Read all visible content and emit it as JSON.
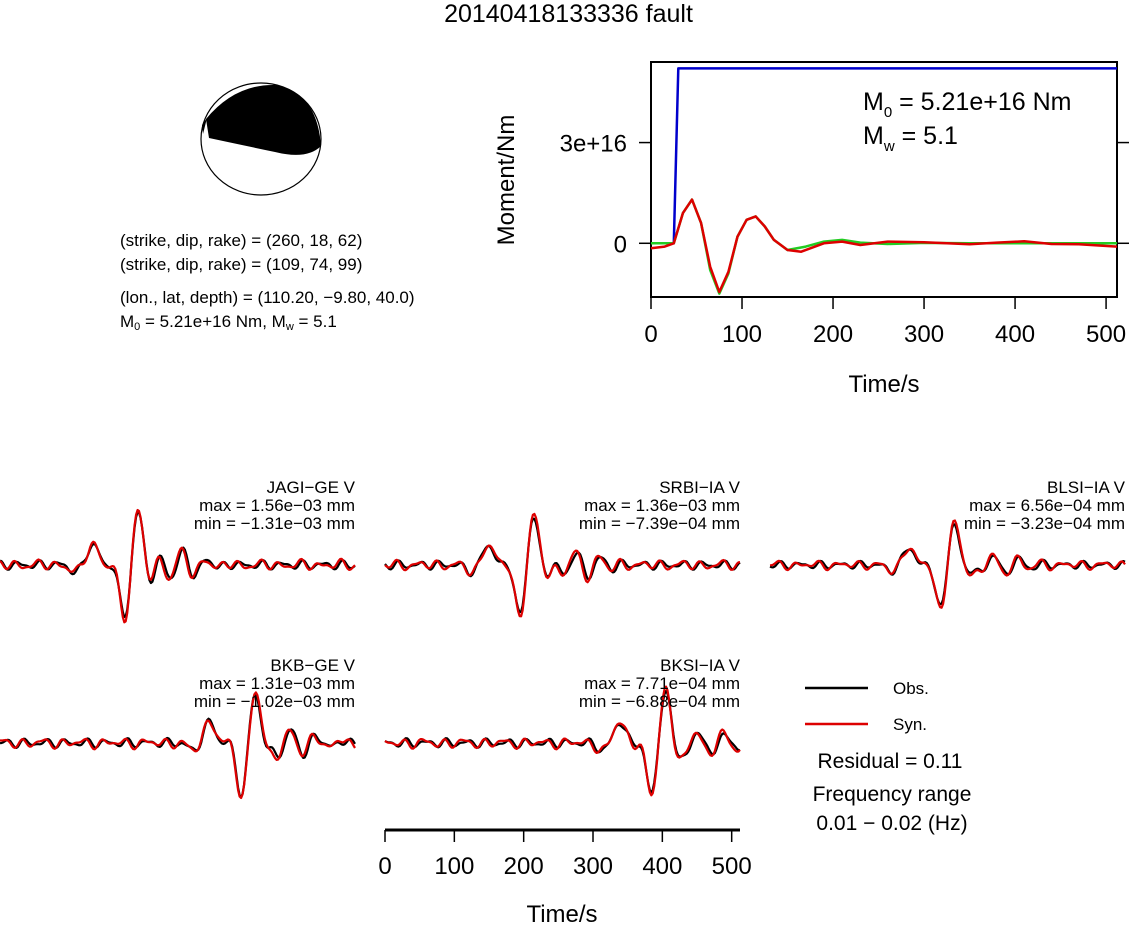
{
  "title": "20140418133336 fault",
  "info": {
    "line1": "(strike, dip, rake) = (260, 18, 62)",
    "line2": "(strike, dip, rake) = (109, 74, 99)",
    "line3": "(lon., lat, depth) = (110.20, −9.80, 40.0)",
    "m0_value": "5.21e+16 Nm",
    "mw_value": "5.1"
  },
  "moment_label_m0_value": "5.21e+16 Nm",
  "moment_label_mw_value": "5.1",
  "legend": {
    "obs": "Obs.",
    "syn": "Syn.",
    "residual": "Residual = 0.11",
    "freq_title": "Frequency range",
    "freq_value": "0.01 − 0.02 (Hz)"
  },
  "colors": {
    "moment": "#0000cc",
    "stf_red": "#dd0000",
    "stf_green": "#22cc22",
    "obs": "#000000",
    "syn": "#dd0000",
    "beachball": "#000000"
  },
  "chart_data": [
    {
      "type": "line",
      "ylabel": "Moment/Nm",
      "xlabel": "Time/s",
      "xlim": [
        0,
        512
      ],
      "ylim": [
        -1.6e+16,
        5.4e+16
      ],
      "xticks": [
        0,
        100,
        200,
        300,
        400,
        500
      ],
      "xtick_labels": [
        "0",
        "100",
        "200",
        "300",
        "400",
        "500"
      ],
      "yticks": [
        0,
        3e+16
      ],
      "ytick_labels": [
        "0",
        "3e+16"
      ],
      "series": [
        {
          "color": "#0000cc",
          "x": [
            0,
            25,
            30,
            512
          ],
          "y": [
            0,
            0,
            5.21e+16,
            5.21e+16
          ]
        },
        {
          "color": "#22cc22",
          "x": [
            0,
            15,
            25,
            35,
            45,
            55,
            65,
            75,
            85,
            95,
            105,
            115,
            125,
            135,
            150,
            170,
            190,
            210,
            230,
            260,
            300,
            350,
            400,
            450,
            512
          ],
          "y": [
            0,
            0,
            0,
            9000000000000000.0,
            1.3e+16,
            6000000000000000.0,
            -8000000000000000.0,
            -1.5e+16,
            -9000000000000000.0,
            2000000000000000.0,
            7000000000000000.0,
            8000000000000000.0,
            5000000000000000.0,
            1000000000000000.0,
            -2000000000000000.0,
            -1000000000000000.0,
            500000000000000.0,
            1000000000000000.0,
            200000000000000.0,
            -200000000000000.0,
            100000000000000.0,
            0,
            0,
            0,
            0
          ]
        },
        {
          "color": "#dd0000",
          "x": [
            0,
            15,
            25,
            35,
            45,
            55,
            65,
            75,
            85,
            95,
            105,
            115,
            125,
            135,
            150,
            165,
            190,
            210,
            230,
            260,
            300,
            350,
            380,
            410,
            440,
            470,
            512
          ],
          "y": [
            -1500000000000000.0,
            -1000000000000000.0,
            0,
            9000000000000000.0,
            1.3e+16,
            6000000000000000.0,
            -7000000000000000.0,
            -1.45e+16,
            -8500000000000000.0,
            2000000000000000.0,
            7000000000000000.0,
            8000000000000000.0,
            5000000000000000.0,
            1000000000000000.0,
            -2000000000000000.0,
            -2500000000000000.0,
            0,
            500000000000000.0,
            -500000000000000.0,
            500000000000000.0,
            300000000000000.0,
            -300000000000000.0,
            200000000000000.0,
            600000000000000.0,
            -200000000000000.0,
            -300000000000000.0,
            -1000000000000000.0
          ]
        }
      ]
    },
    {
      "type": "line",
      "note_ref": "waveforms",
      "xlabel": "Time/s",
      "xlim": [
        0,
        512
      ],
      "xticks": [
        0,
        100,
        200,
        300,
        400,
        500
      ],
      "xtick_labels": [
        "0",
        "100",
        "200",
        "300",
        "400",
        "500"
      ],
      "stations": [
        {
          "name": "JAGI−GE V",
          "max": "max = 1.56e−03 mm",
          "min": "min = −1.31e−03 mm"
        },
        {
          "name": "SRBI−IA V",
          "max": "max = 1.36e−03 mm",
          "min": "min = −7.39e−04 mm"
        },
        {
          "name": "BLSI−IA V",
          "max": "max = 6.56e−04 mm",
          "min": "min = −3.23e−04 mm"
        },
        {
          "name": "BKB−GE V",
          "max": "max = 1.31e−03 mm",
          "min": "min = −1.02e−03 mm"
        },
        {
          "name": "BKSI−IA V",
          "max": "max = 7.71e−04 mm",
          "min": "min = −6.88e−04 mm"
        }
      ],
      "series": [
        {
          "name": "Obs.",
          "color": "#000000"
        },
        {
          "name": "Syn.",
          "color": "#dd0000"
        }
      ]
    }
  ]
}
